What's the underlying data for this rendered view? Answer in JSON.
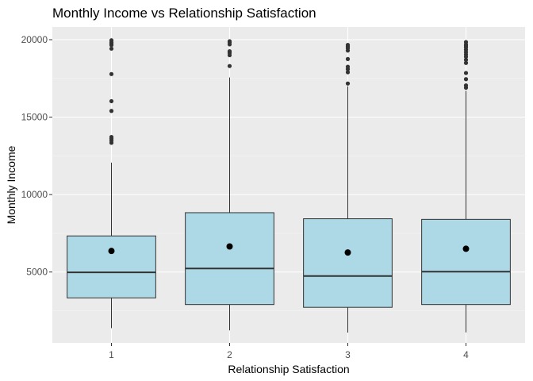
{
  "chart_data": {
    "type": "boxplot",
    "title": "Monthly Income vs Relationship Satisfaction",
    "xlabel": "Relationship Satisfaction",
    "ylabel": "Monthly Income",
    "categories": [
      "1",
      "2",
      "3",
      "4"
    ],
    "y_ticks": [
      5000,
      10000,
      15000,
      20000
    ],
    "y_tick_labels": [
      "5000",
      "10000",
      "15000",
      "20000"
    ],
    "ylim": [
      1000,
      20000
    ],
    "grid": true,
    "legend": "none",
    "colors": {
      "box_fill": "#add8e6",
      "panel": "#ebebeb",
      "line": "#333333",
      "mean": "#000000"
    },
    "boxes": [
      {
        "category": "1",
        "min": 1380,
        "q1": 3330,
        "median": 4980,
        "q3": 7330,
        "max": 12060,
        "mean": 6360,
        "outliers": [
          13340,
          13480,
          13610,
          13720,
          15400,
          16030,
          17780,
          19420,
          19650,
          19740,
          19830,
          19960
        ]
      },
      {
        "category": "2",
        "min": 1230,
        "q1": 2900,
        "median": 5230,
        "q3": 8830,
        "max": 17560,
        "mean": 6650,
        "outliers": [
          18300,
          19000,
          19150,
          19250,
          19700,
          19830,
          19900
        ]
      },
      {
        "category": "3",
        "min": 1090,
        "q1": 2720,
        "median": 4740,
        "q3": 8440,
        "max": 16990,
        "mean": 6260,
        "outliers": [
          17170,
          17900,
          18100,
          18250,
          18750,
          19300,
          19450,
          19560,
          19660
        ]
      },
      {
        "category": "4",
        "min": 1100,
        "q1": 2900,
        "median": 5020,
        "q3": 8400,
        "max": 16700,
        "mean": 6500,
        "outliers": [
          16900,
          17050,
          17450,
          17850,
          18500,
          18700,
          18900,
          19050,
          19200,
          19350,
          19500,
          19600,
          19700,
          19850
        ]
      }
    ]
  }
}
